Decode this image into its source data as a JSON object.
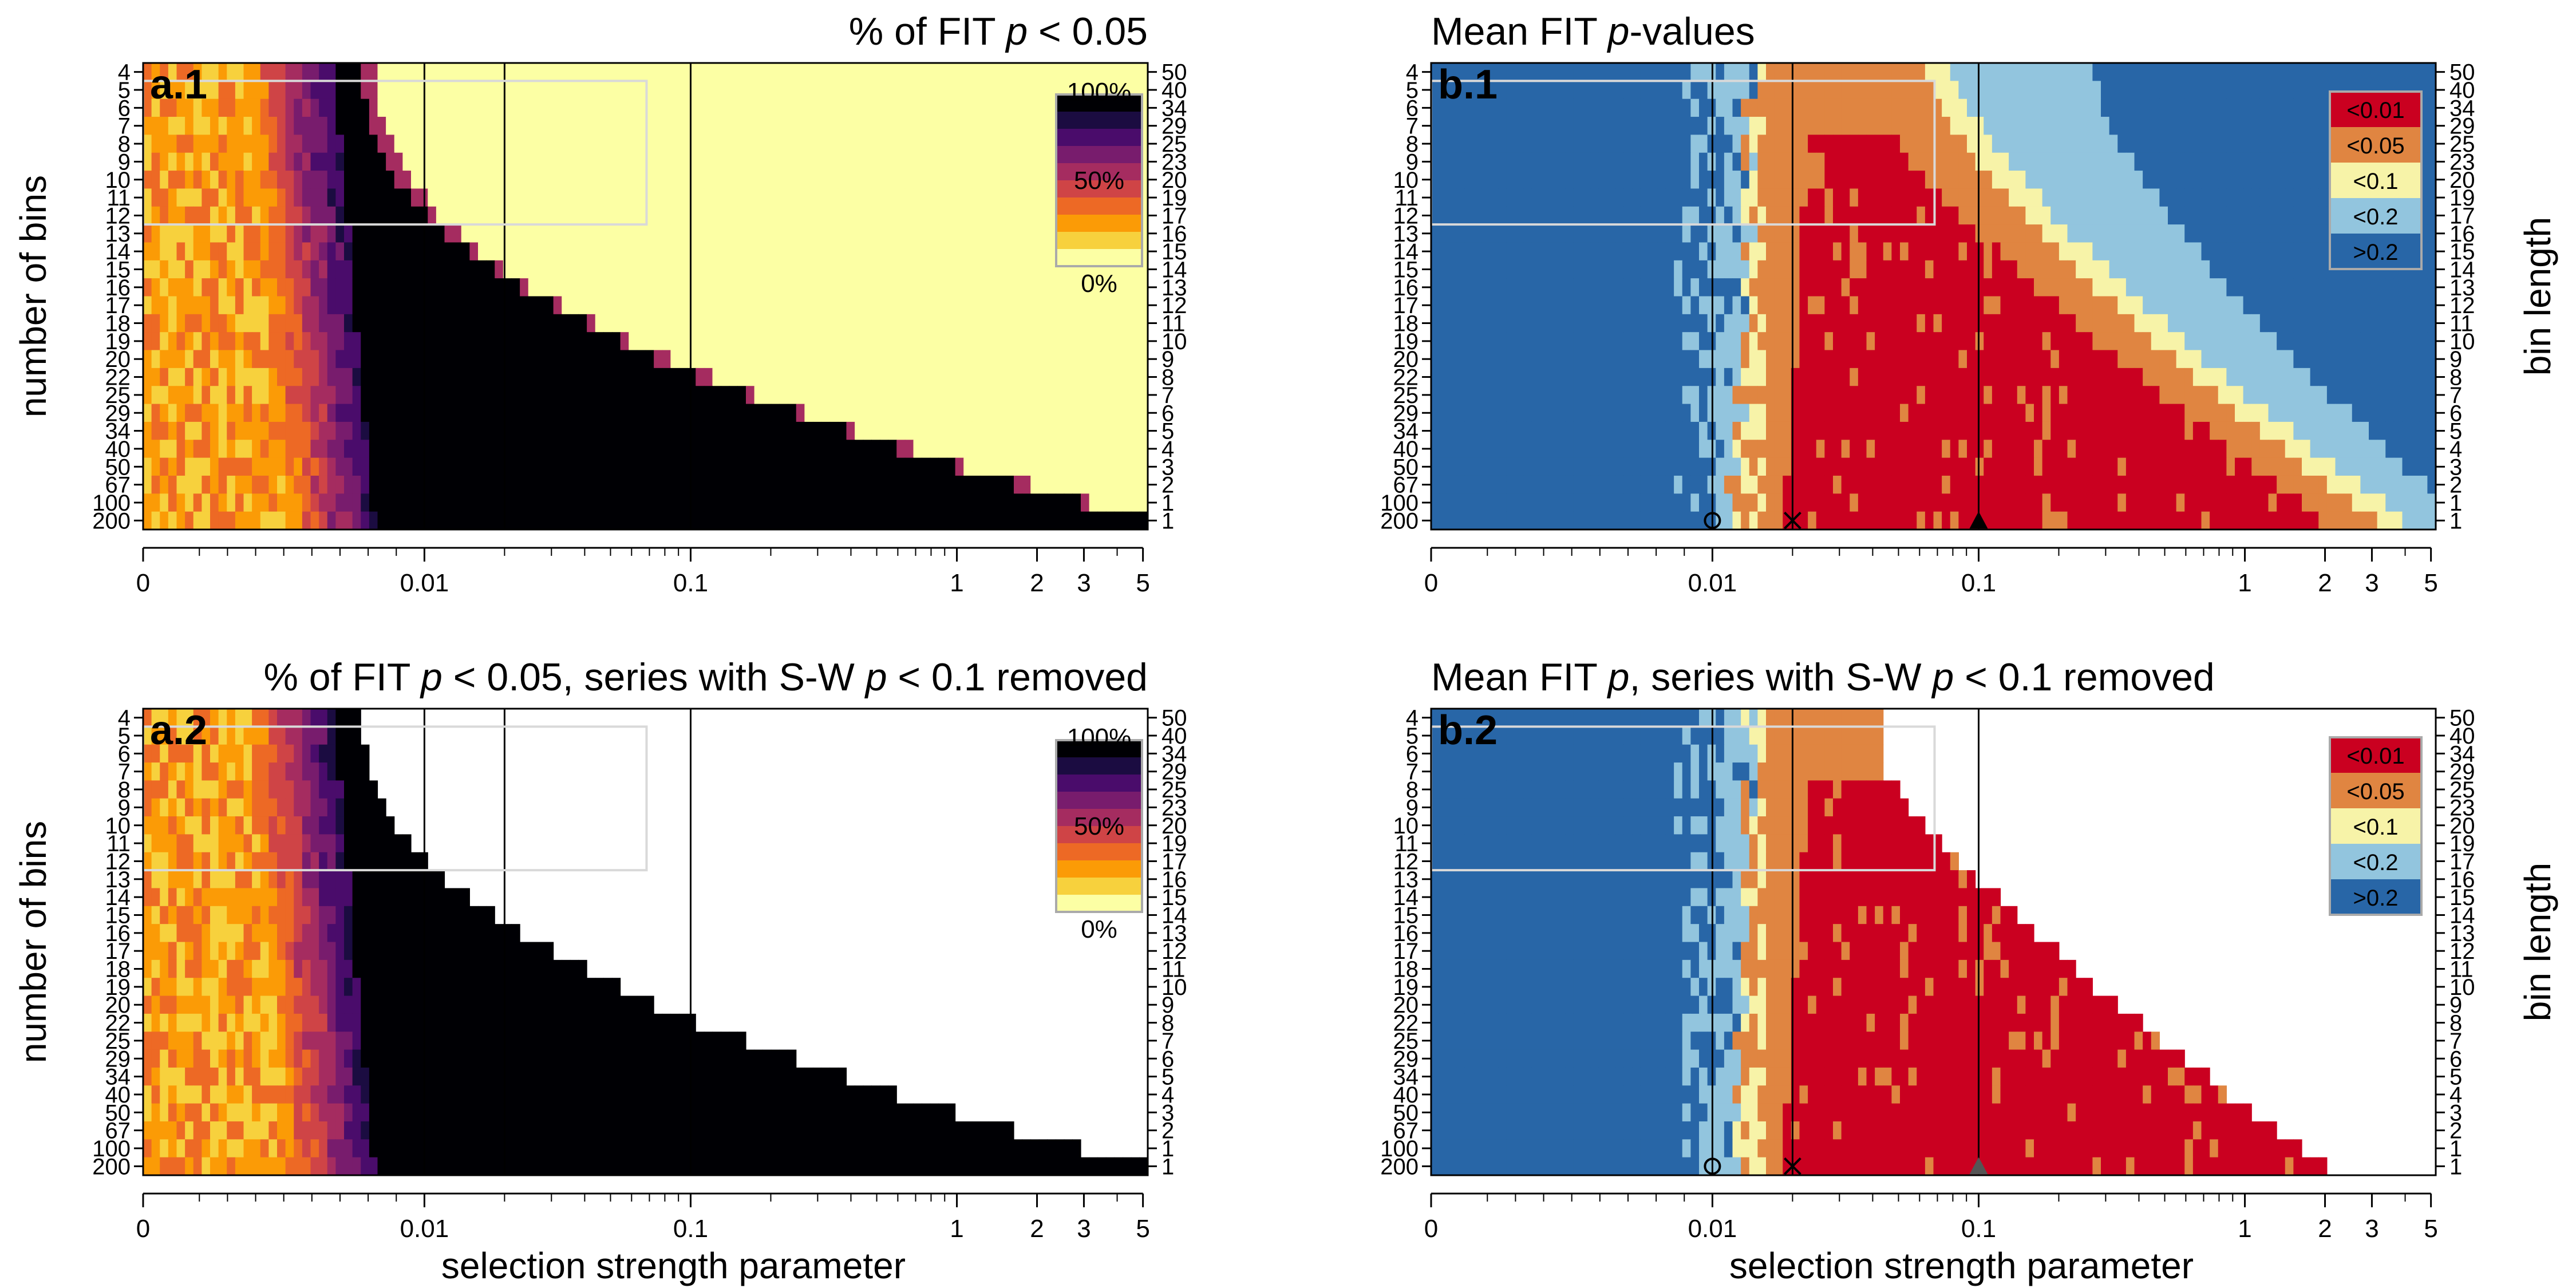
{
  "chart_data": [
    {
      "type": "heatmap",
      "panel_label": "a.1",
      "title_parts": [
        "% of FIT ",
        "p",
        " < 0.05"
      ],
      "xlabel": "",
      "ylabel": "number of bins",
      "ylabel_right": "",
      "x_ticks": [
        "0",
        "0.01",
        "0.1",
        "1",
        "2",
        "3",
        "5"
      ],
      "y_ticks_left": [
        "4",
        "5",
        "6",
        "7",
        "8",
        "9",
        "10",
        "11",
        "12",
        "13",
        "14",
        "15",
        "16",
        "17",
        "18",
        "19",
        "20",
        "22",
        "25",
        "29",
        "34",
        "40",
        "50",
        "67",
        "100",
        "200"
      ],
      "y_ticks_right": [
        "50",
        "40",
        "34",
        "29",
        "25",
        "23",
        "20",
        "19",
        "17",
        "16",
        "15",
        "14",
        "13",
        "12",
        "11",
        "10",
        "9",
        "8",
        "7",
        "6",
        "5",
        "4",
        "3",
        "2",
        "1",
        "1"
      ],
      "x_scale": "log-like, 0 to 5",
      "legend": {
        "type": "continuous",
        "labels": [
          "100%",
          "50%",
          "0%"
        ],
        "position": "top-right",
        "colors": [
          "#000004",
          "#1b0c41",
          "#4a0c6b",
          "#781c6d",
          "#a52c60",
          "#cf4446",
          "#ed6925",
          "#fb9b06",
          "#f7d13d",
          "#fcffa4"
        ]
      },
      "vlines": [
        "0.01",
        "0.02",
        "0.1"
      ],
      "highlight_box": {
        "x_range": [
          "0",
          "0.065"
        ],
        "y_range": [
          "5",
          "12"
        ]
      },
      "boundary_pairs": [
        [
          "0.01",
          "0.03"
        ],
        [
          "0.02",
          "0.04"
        ],
        [
          "0.04",
          "0.065"
        ],
        [
          "0.06",
          "0.09"
        ],
        [
          "0.09",
          "0.13"
        ],
        [
          "0.13",
          "0.18"
        ],
        [
          "0.2",
          "0.3"
        ],
        [
          "0.3",
          "0.45"
        ],
        [
          "0.45",
          "0.7"
        ],
        [
          "0.7",
          "1"
        ],
        [
          "1",
          "1.4"
        ],
        [
          "1.4",
          "2"
        ],
        [
          "2",
          "3"
        ],
        [
          "3",
          "4.5"
        ],
        [
          "4.5",
          "5"
        ]
      ],
      "markers": []
    },
    {
      "type": "heatmap",
      "panel_label": "b.1",
      "title_parts": [
        "Mean FIT ",
        "p",
        "-values"
      ],
      "xlabel": "",
      "ylabel": "",
      "ylabel_right": "bin length",
      "x_ticks": [
        "0",
        "0.01",
        "0.1",
        "1",
        "2",
        "3",
        "5"
      ],
      "y_ticks_left": [
        "4",
        "5",
        "6",
        "7",
        "8",
        "9",
        "10",
        "11",
        "12",
        "13",
        "14",
        "15",
        "16",
        "17",
        "18",
        "19",
        "20",
        "22",
        "25",
        "29",
        "34",
        "40",
        "50",
        "67",
        "100",
        "200"
      ],
      "y_ticks_right": [
        "50",
        "40",
        "34",
        "29",
        "25",
        "23",
        "20",
        "19",
        "17",
        "16",
        "15",
        "14",
        "13",
        "12",
        "11",
        "10",
        "9",
        "8",
        "7",
        "6",
        "5",
        "4",
        "3",
        "2",
        "1",
        "1"
      ],
      "x_scale": "log-like, 0 to 5",
      "legend": {
        "type": "categorical",
        "position": "top-right",
        "labels": [
          "<0.01",
          "<0.05",
          "<0.1",
          "<0.2",
          ">0.2"
        ],
        "colors": [
          "#ca0020",
          "#e08541",
          "#f7f3a8",
          "#92c5de",
          "#2866a7"
        ]
      },
      "vlines": [
        "0.01",
        "0.02",
        "0.1"
      ],
      "highlight_box": {
        "x_range": [
          "0",
          "0.065"
        ],
        "y_range": [
          "5",
          "12"
        ]
      },
      "markers": [
        {
          "shape": "circle",
          "x": "0.01"
        },
        {
          "shape": "cross",
          "x": "0.02"
        },
        {
          "shape": "triangle",
          "x": "0.1"
        }
      ]
    },
    {
      "type": "heatmap",
      "panel_label": "a.2",
      "title_parts": [
        "% of FIT ",
        "p",
        " < 0.05, series with S-W ",
        "p",
        " < 0.1 removed"
      ],
      "xlabel": "selection strength parameter",
      "ylabel": "number of bins",
      "ylabel_right": "",
      "x_ticks": [
        "0",
        "0.01",
        "0.1",
        "1",
        "2",
        "3",
        "5"
      ],
      "y_ticks_left": [
        "4",
        "5",
        "6",
        "7",
        "8",
        "9",
        "10",
        "11",
        "12",
        "13",
        "14",
        "15",
        "16",
        "17",
        "18",
        "19",
        "20",
        "22",
        "25",
        "29",
        "34",
        "40",
        "50",
        "67",
        "100",
        "200"
      ],
      "y_ticks_right": [
        "50",
        "40",
        "34",
        "29",
        "25",
        "23",
        "20",
        "19",
        "17",
        "16",
        "15",
        "14",
        "13",
        "12",
        "11",
        "10",
        "9",
        "8",
        "7",
        "6",
        "5",
        "4",
        "3",
        "2",
        "1",
        "1"
      ],
      "x_scale": "log-like, 0 to 5",
      "legend": {
        "type": "continuous",
        "labels": [
          "100%",
          "50%",
          "0%"
        ],
        "position": "top-right",
        "colors": [
          "#000004",
          "#1b0c41",
          "#4a0c6b",
          "#781c6d",
          "#a52c60",
          "#cf4446",
          "#ed6925",
          "#fb9b06",
          "#f7d13d",
          "#fcffa4"
        ]
      },
      "vlines": [
        "0.01",
        "0.02",
        "0.1"
      ],
      "highlight_box": {
        "x_range": [
          "0",
          "0.065"
        ],
        "y_range": [
          "5",
          "12"
        ]
      },
      "markers": []
    },
    {
      "type": "heatmap",
      "panel_label": "b.2",
      "title_parts": [
        "Mean FIT ",
        "p",
        ", series with S-W ",
        "p",
        " < 0.1 removed"
      ],
      "xlabel": "selection strength parameter",
      "ylabel": "",
      "ylabel_right": "bin length",
      "x_ticks": [
        "0",
        "0.01",
        "0.1",
        "1",
        "2",
        "3",
        "5"
      ],
      "y_ticks_left": [
        "4",
        "5",
        "6",
        "7",
        "8",
        "9",
        "10",
        "11",
        "12",
        "13",
        "14",
        "15",
        "16",
        "17",
        "18",
        "19",
        "20",
        "22",
        "25",
        "29",
        "34",
        "40",
        "50",
        "67",
        "100",
        "200"
      ],
      "y_ticks_right": [
        "50",
        "40",
        "34",
        "29",
        "25",
        "23",
        "20",
        "19",
        "17",
        "16",
        "15",
        "14",
        "13",
        "12",
        "11",
        "10",
        "9",
        "8",
        "7",
        "6",
        "5",
        "4",
        "3",
        "2",
        "1",
        "1"
      ],
      "x_scale": "log-like, 0 to 5",
      "legend": {
        "type": "categorical",
        "position": "top-right",
        "labels": [
          "<0.01",
          "<0.05",
          "<0.1",
          "<0.2",
          ">0.2"
        ],
        "colors": [
          "#ca0020",
          "#e08541",
          "#f7f3a8",
          "#92c5de",
          "#2866a7"
        ]
      },
      "vlines": [
        "0.01",
        "0.02",
        "0.1"
      ],
      "highlight_box": {
        "x_range": [
          "0",
          "0.065"
        ],
        "y_range": [
          "5",
          "12"
        ]
      },
      "markers": [
        {
          "shape": "circle",
          "x": "0.01"
        },
        {
          "shape": "cross",
          "x": "0.02"
        },
        {
          "shape": "triangle",
          "x": "0.1"
        }
      ]
    }
  ]
}
